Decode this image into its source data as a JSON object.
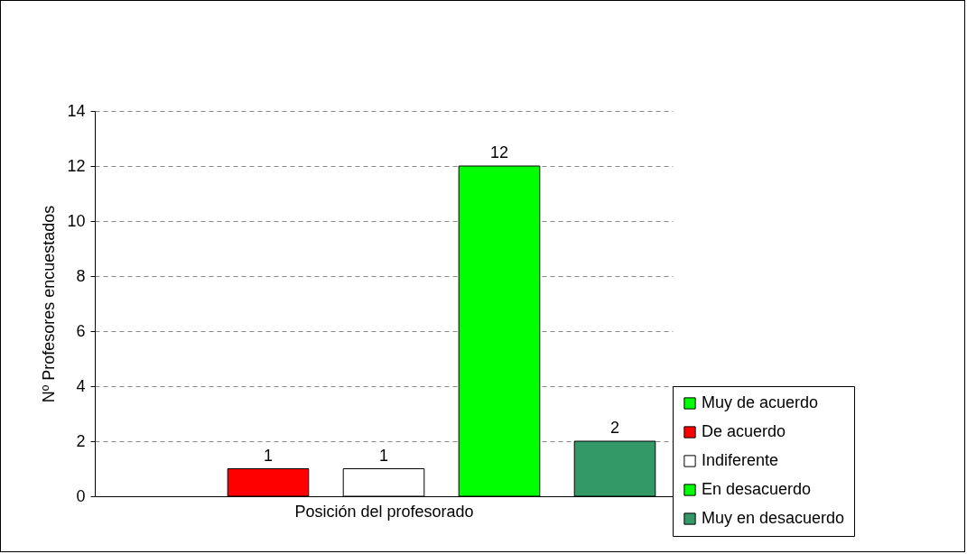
{
  "chart_data": {
    "type": "bar",
    "xlabel": "Posición del profesorado",
    "ylabel": "Nº Profesores encuestados",
    "categories": [
      null
    ],
    "ylim": [
      0,
      14
    ],
    "yticks": [
      0,
      2,
      4,
      6,
      8,
      10,
      12,
      14
    ],
    "grid": "y",
    "legend": "bottom right",
    "series": [
      {
        "name": "Muy de acuerdo",
        "color": "#00ff00",
        "values": [
          0
        ],
        "value_labels": [
          null
        ]
      },
      {
        "name": "De acuerdo",
        "color": "#ff0000",
        "values": [
          1
        ],
        "value_labels": [
          "1"
        ]
      },
      {
        "name": "Indiferente",
        "color": "#ffffff",
        "values": [
          1
        ],
        "value_labels": [
          "1"
        ]
      },
      {
        "name": "En desacuerdo",
        "color": "#00ff00",
        "values": [
          12
        ],
        "value_labels": [
          "12"
        ]
      },
      {
        "name": "Muy en desacuerdo",
        "color": "#339966",
        "values": [
          2
        ],
        "value_labels": [
          "2"
        ]
      }
    ]
  }
}
